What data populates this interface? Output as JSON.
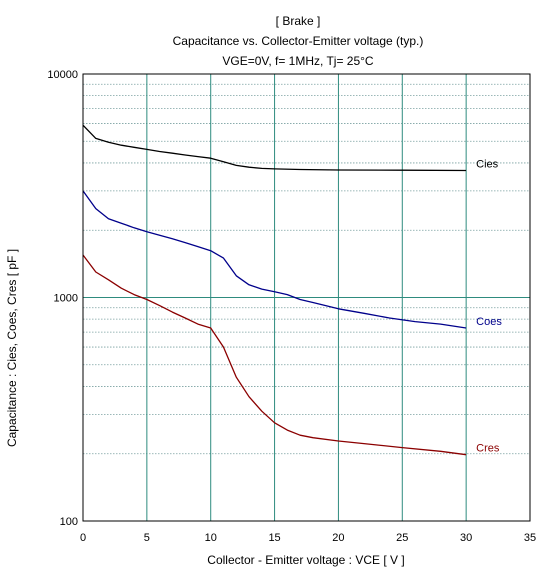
{
  "chart_data": {
    "type": "line",
    "title_lines": [
      "[ Brake ]",
      "Capacitance  vs.  Collector-Emitter voltage  (typ.)",
      "VGE=0V,  f= 1MHz,  Tj= 25°C"
    ],
    "xlabel": "Collector - Emitter voltage  :  VCE  [ V ]",
    "ylabel": "Capacitance  :  Cies, Coes, Cres  [ pF ]",
    "xlim": [
      0,
      35
    ],
    "ylim": [
      100,
      10000
    ],
    "yscale": "log",
    "x_ticks": [
      0,
      5,
      10,
      15,
      20,
      25,
      30,
      35
    ],
    "x_tick_labels": [
      "0",
      "5",
      "10",
      "15",
      "20",
      "25",
      "30",
      "35"
    ],
    "y_ticks": [
      100,
      1000,
      10000
    ],
    "y_tick_labels": [
      "100",
      "1000",
      "10000"
    ],
    "grid": true,
    "colors": {
      "grid_vertical": "#2e8b7e",
      "grid_horizontal": "#7aa0a0",
      "frame": "#000000"
    },
    "series": [
      {
        "name": "Cies",
        "color": "#000000",
        "points": [
          [
            0,
            5900
          ],
          [
            1,
            5150
          ],
          [
            2,
            4950
          ],
          [
            3,
            4800
          ],
          [
            4,
            4700
          ],
          [
            5,
            4600
          ],
          [
            6,
            4500
          ],
          [
            7,
            4420
          ],
          [
            8,
            4340
          ],
          [
            9,
            4270
          ],
          [
            10,
            4200
          ],
          [
            11,
            4050
          ],
          [
            12,
            3900
          ],
          [
            13,
            3830
          ],
          [
            14,
            3780
          ],
          [
            15,
            3760
          ],
          [
            17,
            3740
          ],
          [
            20,
            3720
          ],
          [
            25,
            3710
          ],
          [
            30,
            3700
          ]
        ]
      },
      {
        "name": "Coes",
        "color": "#00008b",
        "points": [
          [
            0,
            3000
          ],
          [
            1,
            2500
          ],
          [
            2,
            2250
          ],
          [
            3,
            2150
          ],
          [
            4,
            2050
          ],
          [
            5,
            1970
          ],
          [
            6,
            1900
          ],
          [
            7,
            1830
          ],
          [
            8,
            1760
          ],
          [
            9,
            1690
          ],
          [
            10,
            1620
          ],
          [
            11,
            1500
          ],
          [
            12,
            1250
          ],
          [
            13,
            1140
          ],
          [
            14,
            1090
          ],
          [
            15,
            1060
          ],
          [
            16,
            1030
          ],
          [
            17,
            980
          ],
          [
            18,
            950
          ],
          [
            19,
            920
          ],
          [
            20,
            890
          ],
          [
            22,
            850
          ],
          [
            24,
            810
          ],
          [
            26,
            780
          ],
          [
            28,
            760
          ],
          [
            30,
            730
          ]
        ]
      },
      {
        "name": "Cres",
        "color": "#8b0000",
        "points": [
          [
            0,
            1550
          ],
          [
            1,
            1300
          ],
          [
            2,
            1200
          ],
          [
            3,
            1100
          ],
          [
            4,
            1030
          ],
          [
            5,
            980
          ],
          [
            6,
            920
          ],
          [
            7,
            860
          ],
          [
            8,
            810
          ],
          [
            9,
            760
          ],
          [
            10,
            730
          ],
          [
            11,
            600
          ],
          [
            12,
            440
          ],
          [
            13,
            360
          ],
          [
            14,
            310
          ],
          [
            15,
            275
          ],
          [
            16,
            255
          ],
          [
            17,
            242
          ],
          [
            18,
            236
          ],
          [
            20,
            228
          ],
          [
            22,
            222
          ],
          [
            25,
            213
          ],
          [
            28,
            205
          ],
          [
            30,
            198
          ]
        ]
      }
    ]
  }
}
